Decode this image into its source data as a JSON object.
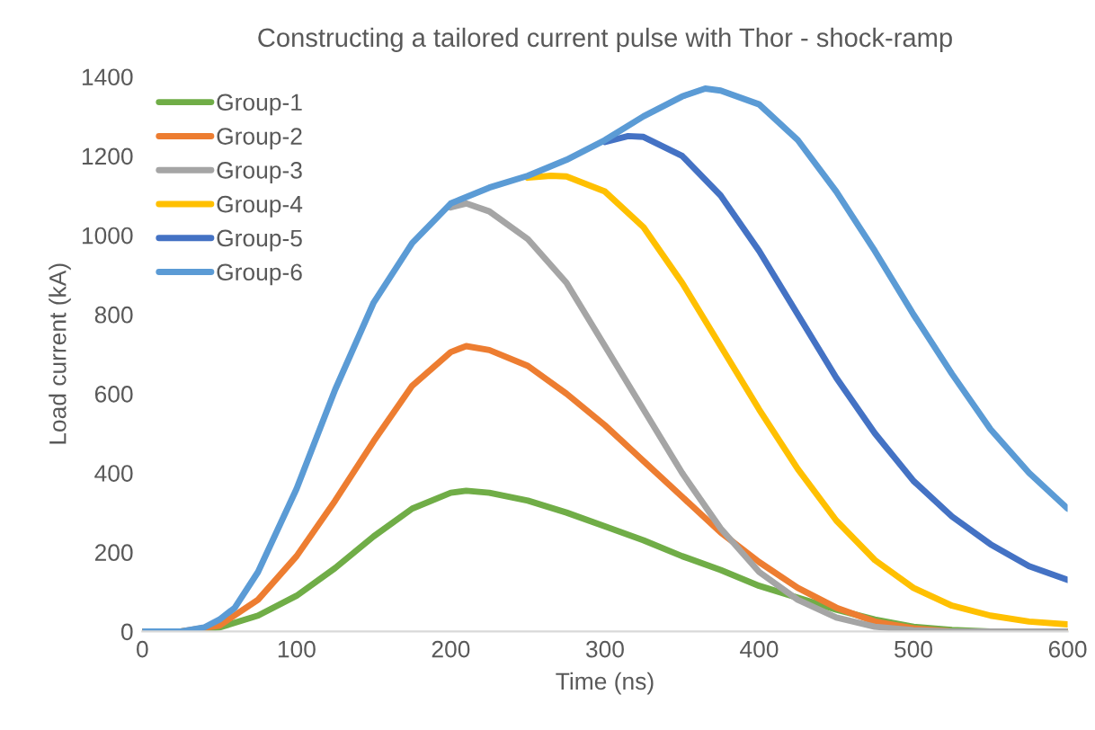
{
  "chart_data": {
    "type": "line",
    "title": "Constructing a tailored current pulse with Thor - shock-ramp",
    "xlabel": "Time (ns)",
    "ylabel": "Load current (kA)",
    "xlim": [
      0,
      600
    ],
    "xticks": [
      0,
      100,
      200,
      300,
      400,
      500,
      600
    ],
    "ylim": [
      0,
      1400
    ],
    "yticks": [
      0,
      200,
      400,
      600,
      800,
      1000,
      1200,
      1400
    ],
    "grid": false,
    "legend": "top left",
    "series": [
      {
        "name": "Group-1",
        "color": "#70ad47",
        "x": [
          0,
          25,
          50,
          75,
          100,
          125,
          150,
          175,
          200,
          210,
          225,
          250,
          275,
          300,
          325,
          350,
          375,
          400,
          425,
          450,
          475,
          500,
          525,
          550,
          600
        ],
        "values": [
          0,
          0,
          10,
          40,
          90,
          160,
          240,
          310,
          350,
          355,
          350,
          330,
          300,
          265,
          230,
          190,
          155,
          115,
          85,
          55,
          30,
          12,
          4,
          0,
          0
        ]
      },
      {
        "name": "Group-2",
        "color": "#ed7d31",
        "x": [
          0,
          25,
          50,
          75,
          100,
          125,
          150,
          175,
          200,
          210,
          225,
          250,
          275,
          300,
          325,
          350,
          375,
          400,
          425,
          450,
          475,
          500,
          525,
          600
        ],
        "values": [
          0,
          0,
          15,
          80,
          190,
          330,
          480,
          620,
          705,
          720,
          710,
          670,
          600,
          520,
          430,
          340,
          250,
          175,
          110,
          60,
          25,
          8,
          0,
          0
        ]
      },
      {
        "name": "Group-3",
        "color": "#a5a5a5",
        "x": [
          200,
          210,
          225,
          250,
          275,
          300,
          325,
          350,
          375,
          400,
          425,
          450,
          475,
          500,
          525,
          600
        ],
        "values": [
          1070,
          1080,
          1060,
          990,
          880,
          720,
          560,
          400,
          260,
          150,
          80,
          35,
          12,
          3,
          0,
          0
        ]
      },
      {
        "name": "Group-4",
        "color": "#ffc000",
        "x": [
          250,
          265,
          275,
          300,
          325,
          350,
          375,
          400,
          425,
          450,
          475,
          500,
          525,
          550,
          575,
          600
        ],
        "values": [
          1145,
          1150,
          1148,
          1110,
          1020,
          880,
          720,
          560,
          410,
          280,
          180,
          110,
          65,
          40,
          25,
          18
        ]
      },
      {
        "name": "Group-5",
        "color": "#4472c4",
        "x": [
          300,
          315,
          325,
          350,
          375,
          400,
          425,
          450,
          475,
          500,
          525,
          550,
          575,
          600
        ],
        "values": [
          1235,
          1250,
          1248,
          1200,
          1100,
          960,
          800,
          640,
          500,
          380,
          290,
          220,
          165,
          130
        ]
      },
      {
        "name": "Group-6",
        "color": "#5b9bd5",
        "x": [
          0,
          25,
          40,
          50,
          60,
          75,
          100,
          125,
          150,
          175,
          200,
          225,
          250,
          275,
          300,
          325,
          350,
          365,
          375,
          400,
          425,
          450,
          475,
          500,
          525,
          550,
          575,
          600
        ],
        "values": [
          0,
          0,
          10,
          30,
          60,
          150,
          360,
          610,
          830,
          980,
          1080,
          1120,
          1150,
          1190,
          1240,
          1300,
          1350,
          1370,
          1365,
          1330,
          1240,
          1110,
          960,
          800,
          650,
          510,
          400,
          310
        ]
      }
    ]
  }
}
